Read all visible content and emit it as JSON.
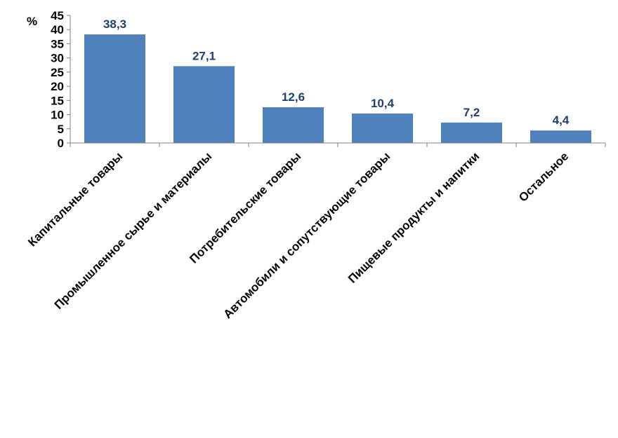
{
  "chart_data": {
    "type": "bar",
    "ylabel": "%",
    "ylim": [
      0,
      45
    ],
    "yticks": [
      0,
      5,
      10,
      15,
      20,
      25,
      30,
      35,
      40,
      45
    ],
    "categories": [
      "Капитальные товары",
      "Промышленное сырье и материалы",
      "Потребительские товары",
      "Автомобили и сопутствующие товары",
      "Пищевые продукты и напитки",
      "Остальное"
    ],
    "values": [
      38.3,
      27.1,
      12.6,
      10.4,
      7.2,
      4.4
    ],
    "data_labels": [
      "38,3",
      "27,1",
      "12,6",
      "10,4",
      "7,2",
      "4,4"
    ],
    "bar_color": "#4f81bd",
    "label_color": "#1f3f6e",
    "grid": false,
    "legend": "none"
  }
}
